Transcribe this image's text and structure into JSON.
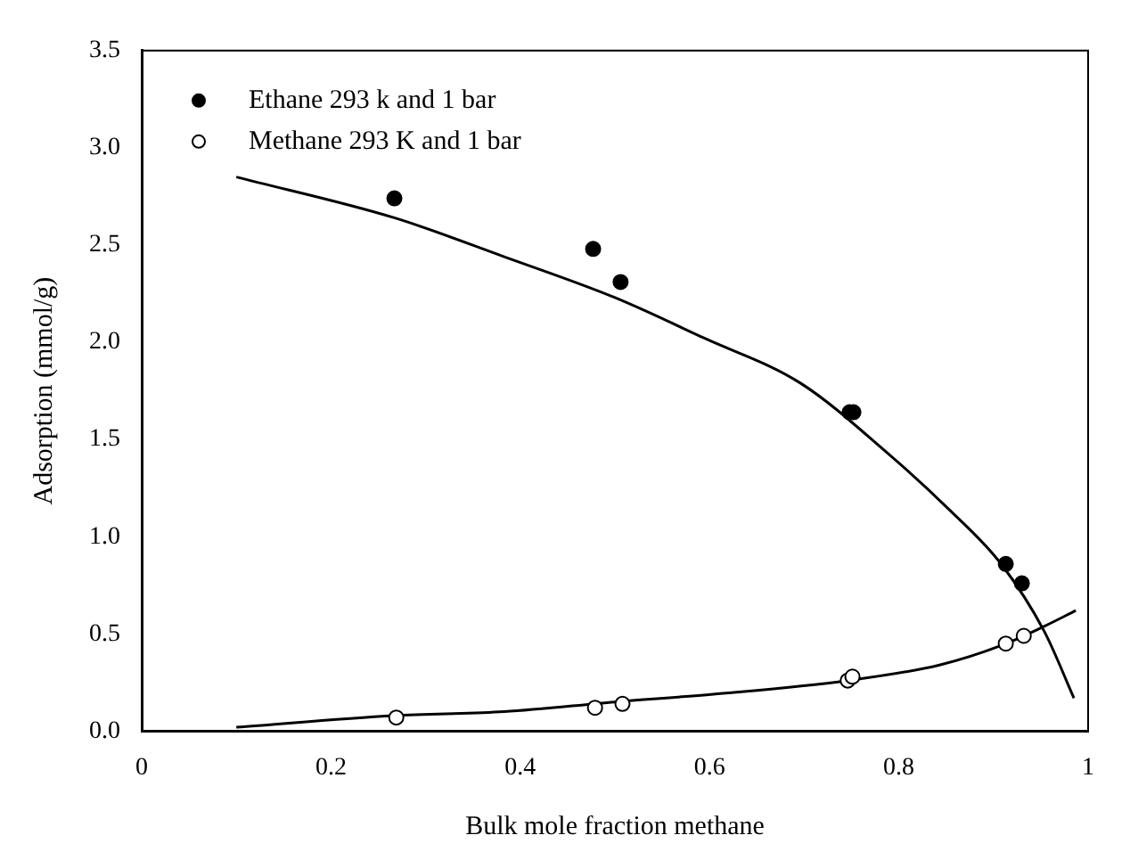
{
  "chart_data": {
    "type": "scatter",
    "xlabel": "Bulk mole fraction methane",
    "ylabel": "Adsorption (mmol/g)",
    "xlim": [
      0,
      1
    ],
    "xticks": [
      0,
      0.2,
      0.4,
      0.6,
      0.8,
      1
    ],
    "ylim": [
      0,
      3.5
    ],
    "yticks": [
      {
        "value": 0,
        "label": "0.0"
      },
      {
        "value": 0.5,
        "label": "0.5"
      },
      {
        "value": 1,
        "label": "1.0"
      },
      {
        "value": 1.5,
        "label": "1.5"
      },
      {
        "value": 2,
        "label": "2.0"
      },
      {
        "value": 2.5,
        "label": "2.5"
      },
      {
        "value": 3,
        "label": "3.0"
      },
      {
        "value": 3.5,
        "label": "3.5"
      }
    ],
    "grid": false,
    "legend": "top left",
    "marker": "circle",
    "series": [
      {
        "name": "Ethane 293 k and 1 bar",
        "color": "#000000",
        "x": [
          0.267,
          0.477,
          0.506,
          0.748,
          0.752,
          0.913,
          0.93
        ],
        "values": [
          2.74,
          2.48,
          2.31,
          1.64,
          1.64,
          0.86,
          0.76
        ]
      },
      {
        "name": "Methane 293 K and 1 bar",
        "color": "#000000",
        "x": [
          0.269,
          0.479,
          0.508,
          0.746,
          0.751,
          0.913,
          0.932
        ],
        "values": [
          0.07,
          0.12,
          0.14,
          0.26,
          0.28,
          0.45,
          0.49
        ]
      },
      {
        "type": "line",
        "color": "#000000",
        "marker": "none",
        "x": [
          0.1,
          0.267,
          0.383,
          0.5,
          0.595,
          0.696,
          0.788,
          0.853,
          0.908,
          0.954,
          0.985
        ],
        "values": [
          2.85,
          2.64,
          2.44,
          2.23,
          2.02,
          1.79,
          1.43,
          1.14,
          0.86,
          0.51,
          0.17
        ]
      },
      {
        "type": "line",
        "color": "#000000",
        "marker": "none",
        "x": [
          0.1,
          0.267,
          0.383,
          0.5,
          0.604,
          0.746,
          0.843,
          0.908,
          0.954,
          0.987
        ],
        "values": [
          0.02,
          0.08,
          0.1,
          0.15,
          0.19,
          0.26,
          0.34,
          0.44,
          0.54,
          0.62
        ]
      }
    ]
  }
}
